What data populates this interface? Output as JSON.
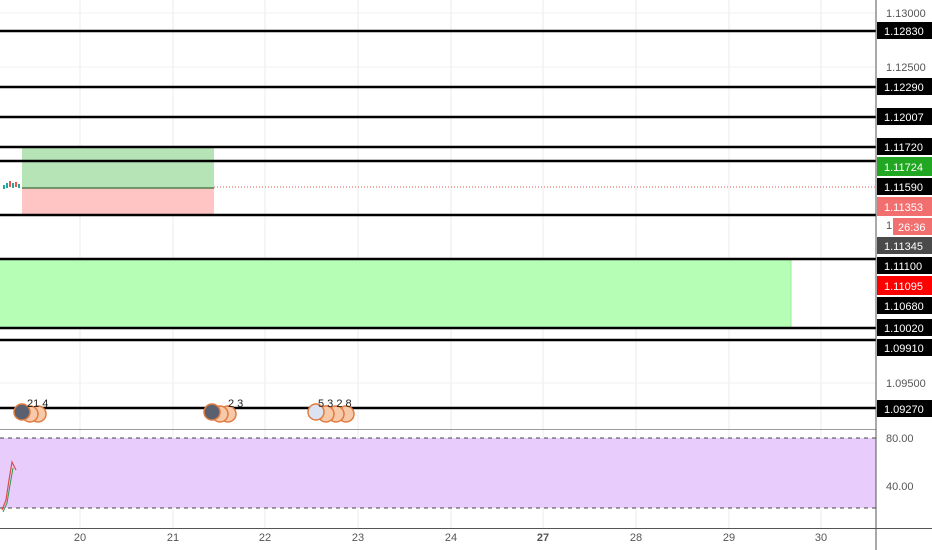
{
  "main_chart": {
    "axis_labels": [
      "1.13000",
      "1.12500",
      "1.09500"
    ],
    "current_price": "1.11590",
    "countdown": "26:36",
    "partial_label": "1.",
    "price_tags": [
      {
        "name": "level-1-12830",
        "text": "1.12830",
        "bg": "#000000",
        "fg": "#ffffff"
      },
      {
        "name": "level-1-12290",
        "text": "1.12290",
        "bg": "#000000",
        "fg": "#ffffff"
      },
      {
        "name": "level-1-12007",
        "text": "1.12007",
        "bg": "#000000",
        "fg": "#ffffff"
      },
      {
        "name": "level-1-11720",
        "text": "1.11720",
        "bg": "#000000",
        "fg": "#ffffff"
      },
      {
        "name": "take-profit-1-11724",
        "text": "1.11724",
        "bg": "#22a722",
        "fg": "#ffffff"
      },
      {
        "name": "current-price-1-11590",
        "text": "1.11590",
        "bg": "#000000",
        "fg": "#ffffff"
      },
      {
        "name": "stop-loss-1-11353",
        "text": "1.11353",
        "bg": "#f26f6f",
        "fg": "#ffffff"
      },
      {
        "name": "countdown-26-36",
        "text": "26:36",
        "bg": "#f26f6f",
        "fg": "#ffffff"
      },
      {
        "name": "level-1-11345",
        "text": "1.11345",
        "bg": "#4a4a4a",
        "fg": "#ffffff"
      },
      {
        "name": "level-1-11100",
        "text": "1.11100",
        "bg": "#000000",
        "fg": "#ffffff"
      },
      {
        "name": "level-1-11095",
        "text": "1.11095",
        "bg": "#ff0000",
        "fg": "#ffffff"
      },
      {
        "name": "level-1-10680",
        "text": "1.10680",
        "bg": "#000000",
        "fg": "#ffffff"
      },
      {
        "name": "level-1-10020",
        "text": "1.10020",
        "bg": "#000000",
        "fg": "#ffffff"
      },
      {
        "name": "level-1-09910",
        "text": "1.09910",
        "bg": "#000000",
        "fg": "#ffffff"
      },
      {
        "name": "level-1-09270",
        "text": "1.09270",
        "bg": "#000000",
        "fg": "#ffffff"
      }
    ],
    "event_markers": [
      {
        "name": "news-events-group-1",
        "labels": "21 4"
      },
      {
        "name": "news-events-group-2",
        "labels": "2 3"
      },
      {
        "name": "news-events-group-3",
        "labels": "5 3 2 8"
      }
    ]
  },
  "indicator_pane": {
    "axis_labels": [
      "80.00",
      "40.00"
    ]
  },
  "time_axis": {
    "labels": [
      "20",
      "21",
      "22",
      "23",
      "24",
      "27",
      "28",
      "29",
      "30"
    ]
  },
  "colors": {
    "tp_zone": "#b7e4b7",
    "sl_zone": "#ffc4c4",
    "demand_zone": "#b6fdb6",
    "indicator_bg": "#e8ccfc",
    "current_price_line": "#e05555"
  }
}
